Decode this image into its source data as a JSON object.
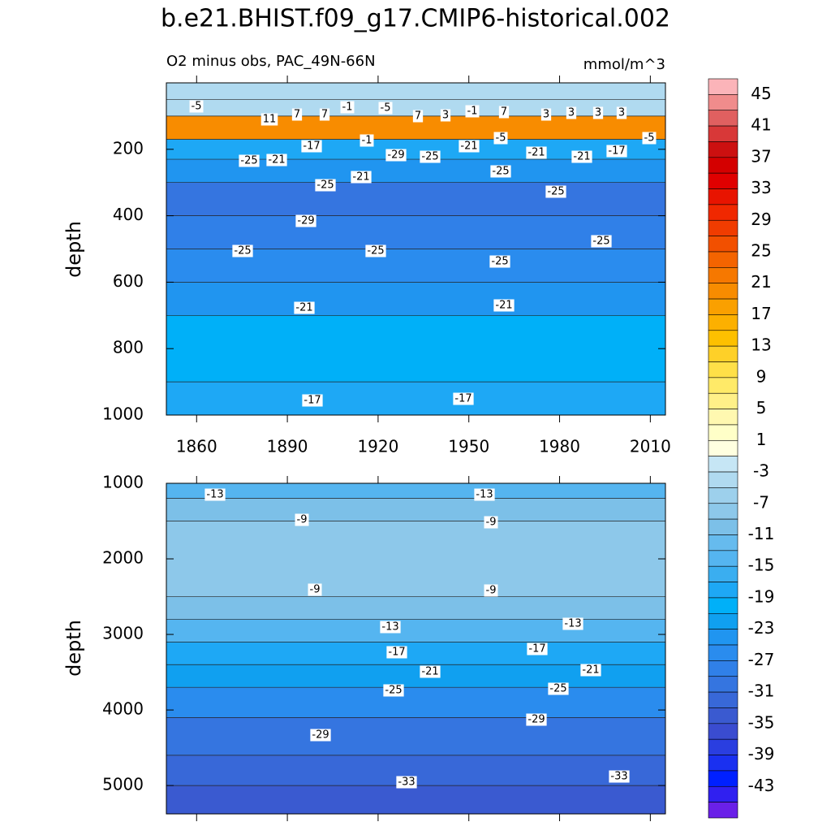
{
  "title": "b.e21.BHIST.f09_g17.CMIP6-historical.002",
  "chart_data": [
    {
      "type": "contour",
      "subtitle": "O2 minus obs, PAC_49N-66N",
      "units": "mmol/m^3",
      "ylabel": "depth",
      "xlim": [
        1850,
        2015
      ],
      "xticks": [
        1860,
        1890,
        1920,
        1950,
        1980,
        2010
      ],
      "ylim": [
        0,
        1000
      ],
      "yticks": [
        200,
        400,
        600,
        800,
        1000
      ],
      "reversed_y": true,
      "depth_bins": [
        0,
        50,
        100,
        170,
        230,
        300,
        400,
        500,
        600,
        700,
        900,
        1000
      ],
      "values": [
        -4,
        -4,
        20,
        -18,
        -24,
        -30,
        -28,
        -26,
        -24,
        -20,
        -18
      ],
      "contour_labels": [
        -5,
        11,
        7,
        7,
        -1,
        -5,
        7,
        3,
        -1,
        7,
        3,
        3,
        3,
        3,
        -5,
        -25,
        -21,
        -17,
        -1,
        -29,
        -25,
        -21,
        -5,
        -25,
        -21,
        -21,
        -17,
        -25,
        -21,
        -25,
        -29,
        -25,
        -25,
        -25,
        -25,
        -21,
        -21,
        -17,
        -17
      ]
    },
    {
      "type": "contour",
      "ylabel": "depth",
      "xlim": [
        1850,
        2015
      ],
      "xticks": [
        1860,
        1890,
        1920,
        1950,
        1980,
        2010
      ],
      "ylim": [
        1000,
        5375
      ],
      "yticks": [
        1000,
        2000,
        3000,
        4000,
        5000
      ],
      "reversed_y": true,
      "depth_bins": [
        1000,
        1200,
        1500,
        2500,
        2800,
        3100,
        3400,
        3700,
        4100,
        4600,
        5000,
        5375
      ],
      "values": [
        -14,
        -10,
        -8,
        -10,
        -14,
        -18,
        -22,
        -26,
        -30,
        -32,
        -34
      ],
      "contour_labels": [
        -13,
        -13,
        -9,
        -9,
        -9,
        -9,
        -13,
        -13,
        -17,
        -17,
        -21,
        -21,
        -25,
        -25,
        -29,
        -29,
        -33,
        -33
      ]
    }
  ],
  "colorbar": {
    "labels": [
      45,
      41,
      37,
      33,
      29,
      25,
      21,
      17,
      13,
      9,
      5,
      1,
      -3,
      -7,
      -11,
      -15,
      -19,
      -23,
      -27,
      -31,
      -35,
      -39,
      -43
    ],
    "colors": [
      "#fbb4b9",
      "#f08c8c",
      "#e06060",
      "#d83838",
      "#cc1010",
      "#d40000",
      "#e00000",
      "#e81400",
      "#f02800",
      "#f03c00",
      "#f25000",
      "#f46400",
      "#f67800",
      "#f88c00",
      "#faa000",
      "#fcb000",
      "#fdc000",
      "#fed028",
      "#ffe048",
      "#ffea68",
      "#fff088",
      "#fff8b0",
      "#ffffc8",
      "#ffffe0",
      "#c6e6f5",
      "#b0daf0",
      "#9dd0ec",
      "#8dc8ea",
      "#7cc0e8",
      "#66bbee",
      "#55b5f0",
      "#3aaef0",
      "#1ea8f5",
      "#00b0f8",
      "#10a0f0",
      "#2095f0",
      "#2a8cee",
      "#3080e8",
      "#3575e0",
      "#3868d8",
      "#3a5ad0",
      "#3a4cd0",
      "#2a3ee0",
      "#1a30f0",
      "#0020ff",
      "#3020f0",
      "#6a20e8"
    ]
  }
}
